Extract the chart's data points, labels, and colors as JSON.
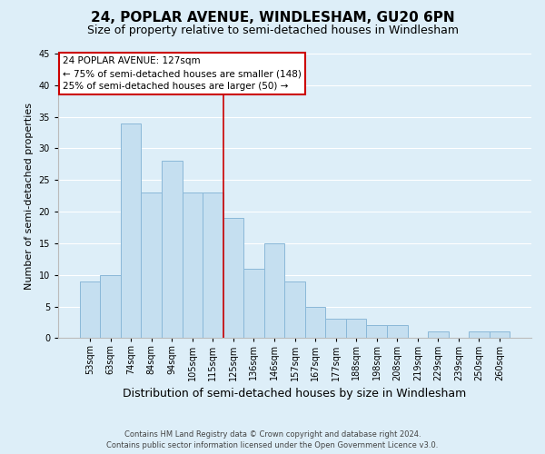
{
  "title": "24, POPLAR AVENUE, WINDLESHAM, GU20 6PN",
  "subtitle": "Size of property relative to semi-detached houses in Windlesham",
  "xlabel": "Distribution of semi-detached houses by size in Windlesham",
  "ylabel": "Number of semi-detached properties",
  "footer_line1": "Contains HM Land Registry data © Crown copyright and database right 2024.",
  "footer_line2": "Contains public sector information licensed under the Open Government Licence v3.0.",
  "bin_labels": [
    "53sqm",
    "63sqm",
    "74sqm",
    "84sqm",
    "94sqm",
    "105sqm",
    "115sqm",
    "125sqm",
    "136sqm",
    "146sqm",
    "157sqm",
    "167sqm",
    "177sqm",
    "188sqm",
    "198sqm",
    "208sqm",
    "219sqm",
    "229sqm",
    "239sqm",
    "250sqm",
    "260sqm"
  ],
  "bar_heights": [
    9,
    10,
    34,
    23,
    28,
    23,
    23,
    19,
    11,
    15,
    9,
    5,
    3,
    3,
    2,
    2,
    0,
    1,
    0,
    1,
    1
  ],
  "bar_color": "#c5dff0",
  "bar_edge_color": "#8ab8d8",
  "vline_x_index": 7,
  "vline_color": "#cc0000",
  "annotation_title": "24 POPLAR AVENUE: 127sqm",
  "annotation_line2": "← 75% of semi-detached houses are smaller (148)",
  "annotation_line3": "25% of semi-detached houses are larger (50) →",
  "ylim": [
    0,
    45
  ],
  "yticks": [
    0,
    5,
    10,
    15,
    20,
    25,
    30,
    35,
    40,
    45
  ],
  "background_color": "#ddeef8",
  "plot_bg_color": "#ddeef8",
  "title_fontsize": 11,
  "subtitle_fontsize": 9,
  "ylabel_fontsize": 8,
  "xlabel_fontsize": 9,
  "tick_fontsize": 7,
  "box_facecolor": "white",
  "box_edgecolor": "#cc0000",
  "grid_color": "white"
}
